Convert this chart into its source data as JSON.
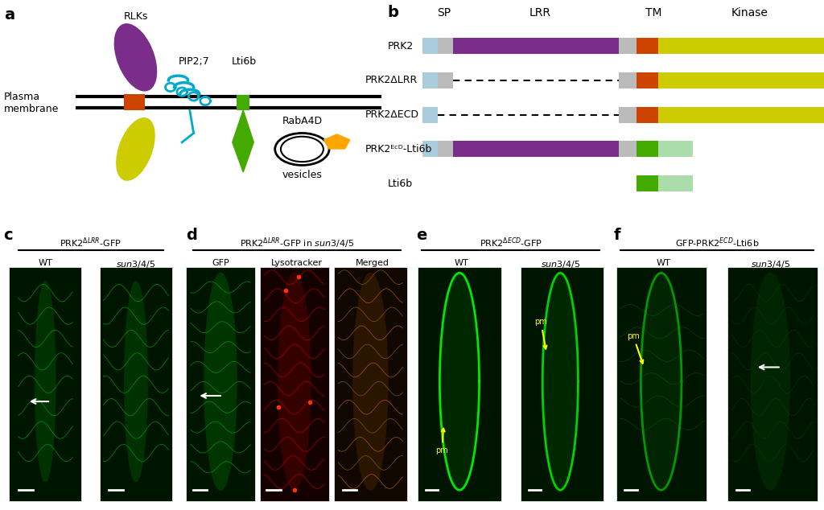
{
  "panel_a_label": "a",
  "panel_b_label": "b",
  "panel_c_label": "c",
  "panel_d_label": "d",
  "panel_e_label": "e",
  "panel_f_label": "f",
  "plasma_membrane_text": "Plasma\nmembrane",
  "rlks_text": "RLKs",
  "pip27_text": "PIP2;7",
  "lti6b_text": "Lti6b",
  "raba4d_text": "RabA4D",
  "vesicles_text": "vesicles",
  "sp_text": "SP",
  "lrr_text": "LRR",
  "tm_text": "TM",
  "kinase_text": "Kinase",
  "domain_labels": [
    "PRK2",
    "PRK2ΔLRR",
    "PRK2ΔECD",
    "PRK2ᴱᶜᴰ-Lti6b",
    "Lti6b"
  ],
  "bg_color": "#ffffff",
  "purple": "#7B2D8B",
  "yellow": "#CCCC00",
  "orange": "#CC4400",
  "gray": "#AAAAAA",
  "lightblue": "#AACCFF",
  "cyan": "#00AACC",
  "green_dark": "#44AA00",
  "green_light": "#AADDAA",
  "panel_c_title": "PRK2ΔLRR-GFP",
  "panel_c_sub1": "WT",
  "panel_c_sub2": "sun3/4/5",
  "panel_d_title": "PRK2ΔLRR-GFP in sun3/4/5",
  "panel_d_sub1": "GFP",
  "panel_d_sub2": "Lysotracker",
  "panel_d_sub3": "Merged",
  "panel_e_title": "PRK2ΔECD-GFP",
  "panel_e_sub1": "WT",
  "panel_e_sub2": "sun3/4/5",
  "panel_f_title": "GFP-PRK2ᴱᶜᴰ-Lti6b",
  "panel_f_sub1": "WT",
  "panel_f_sub2": "sun3/4/5"
}
